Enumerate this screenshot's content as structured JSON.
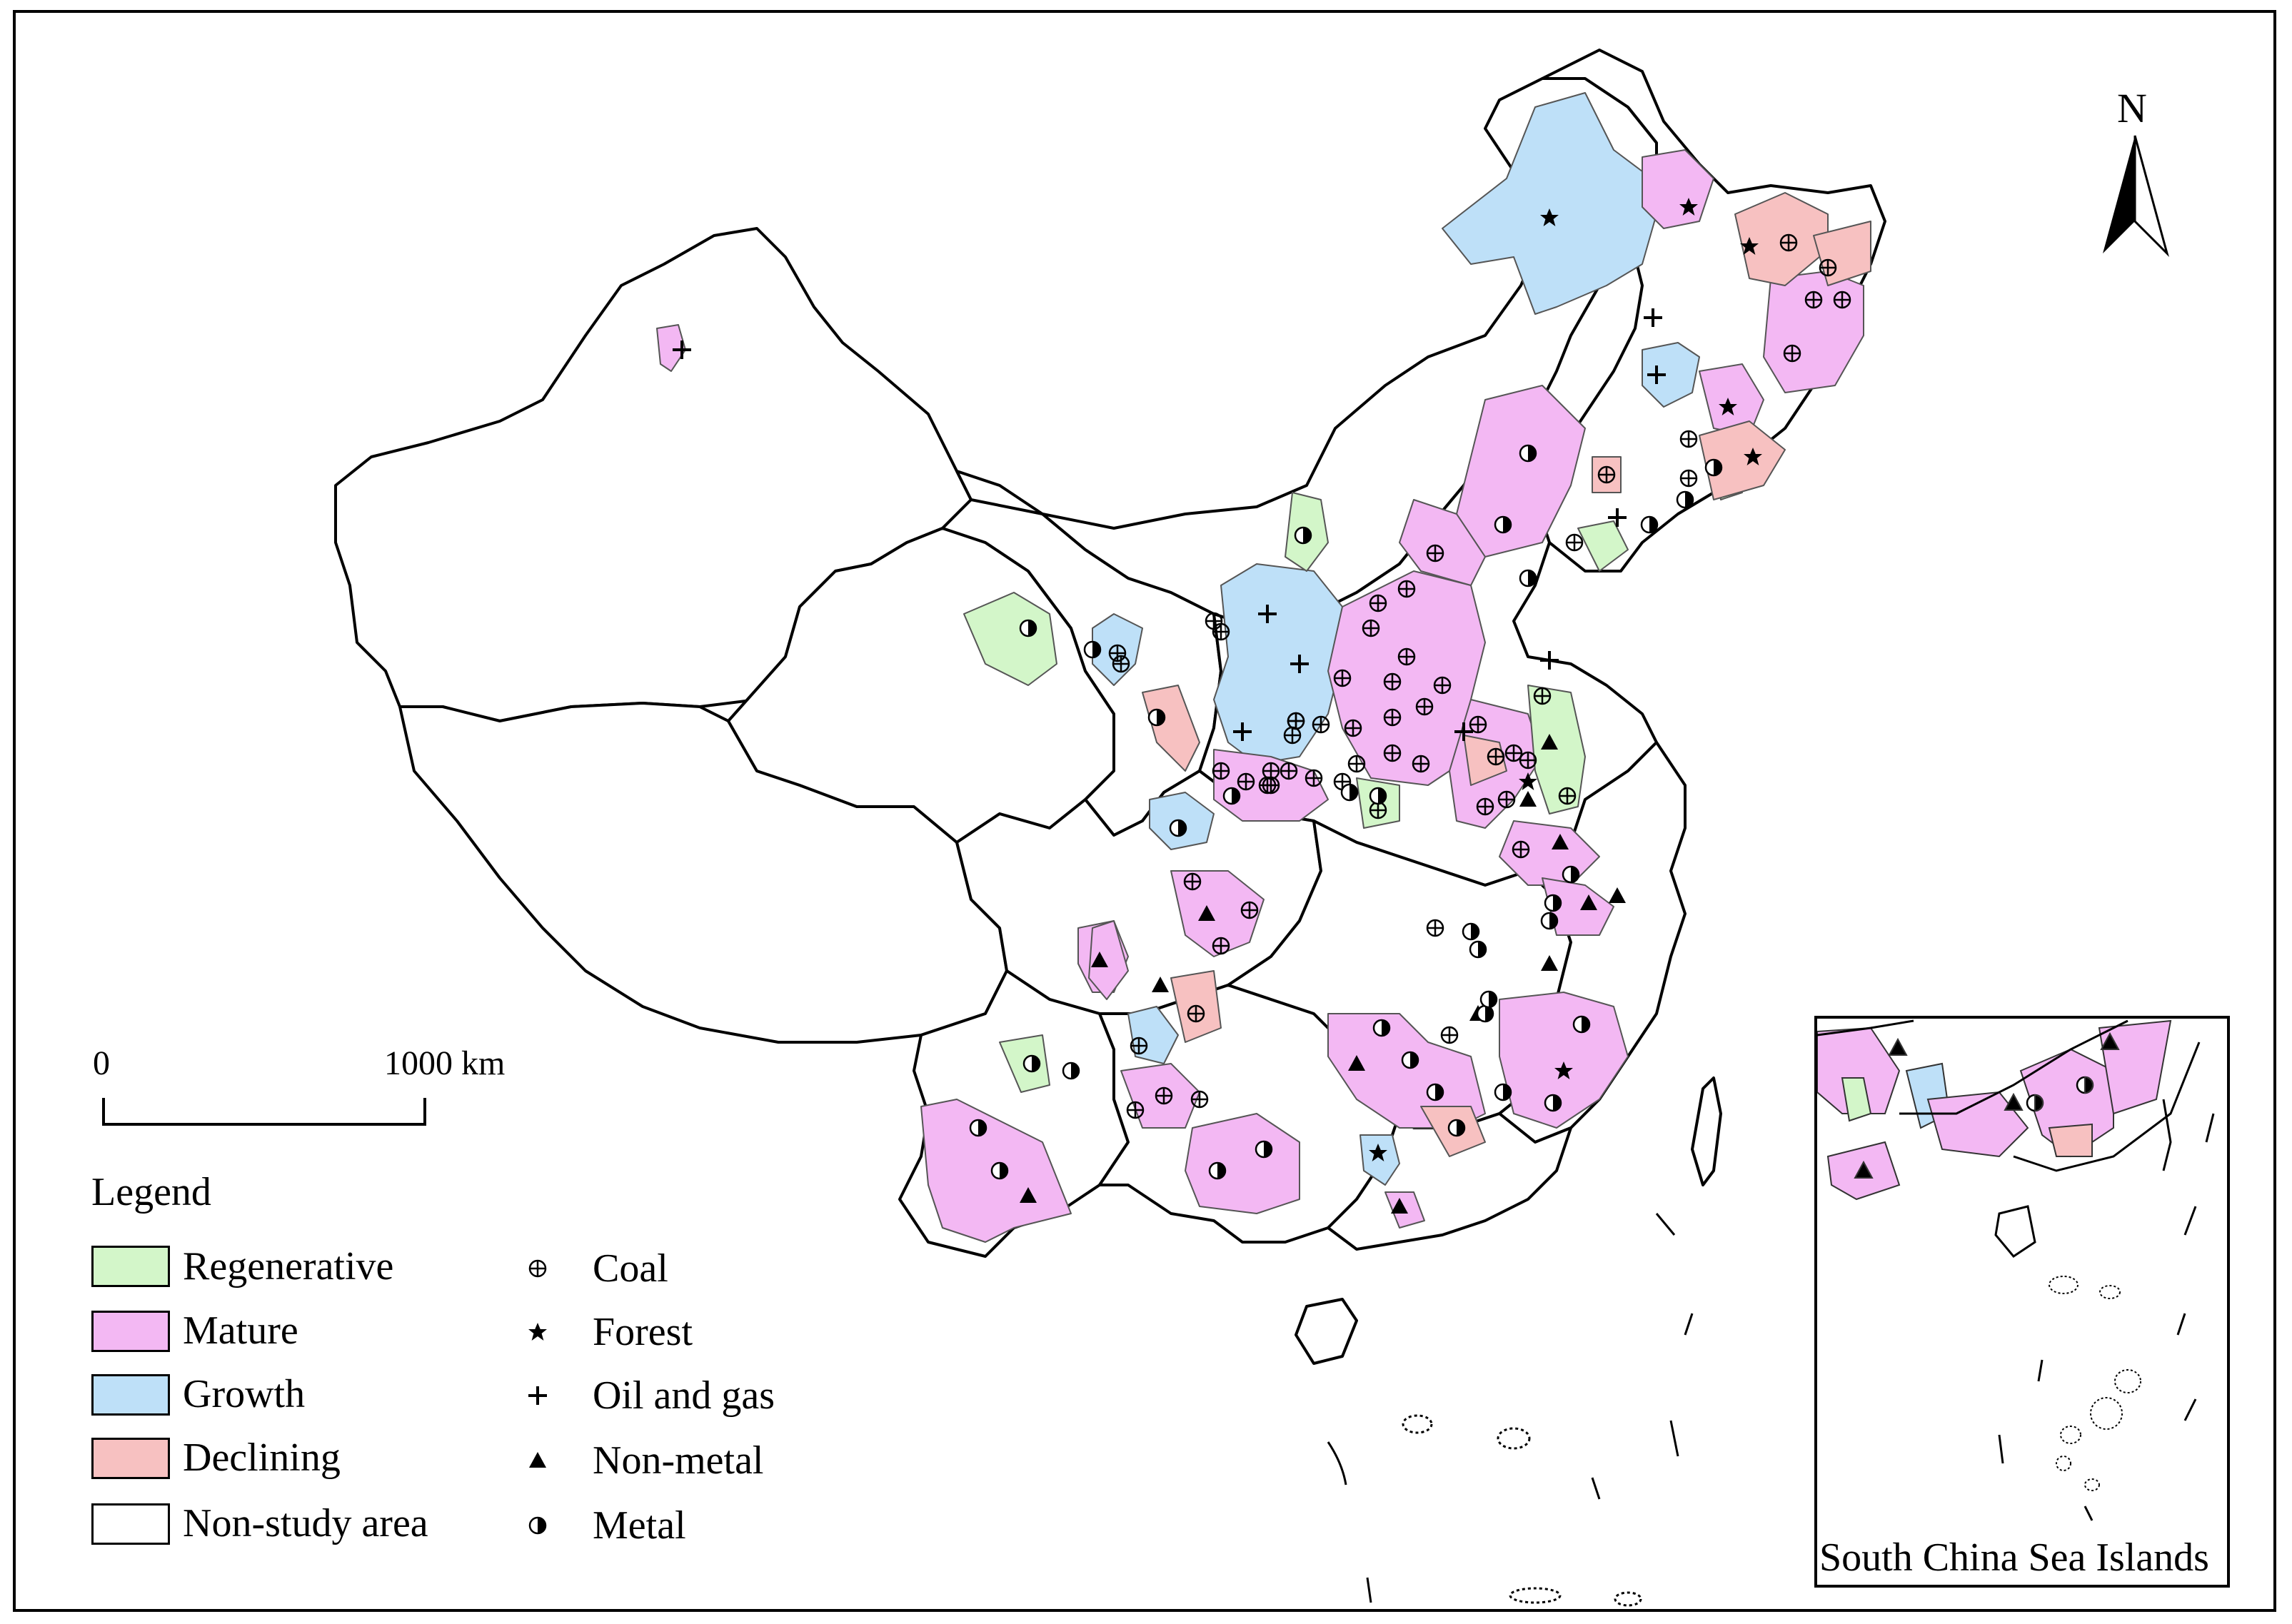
{
  "north_label": "N",
  "scale_bar": {
    "zero": "0",
    "end": "1000 km"
  },
  "legend": {
    "title": "Legend",
    "areas": [
      {
        "label": "Regenerative",
        "color": "#d3f6c9"
      },
      {
        "label": "Mature",
        "color": "#f3b8f3"
      },
      {
        "label": "Growth",
        "color": "#bee0f8"
      },
      {
        "label": "Declining",
        "color": "#f7c1c1"
      },
      {
        "label": "Non-study area",
        "color": "#ffffff"
      }
    ],
    "symbols": [
      {
        "label": "Coal",
        "icon": "circle-plus-icon"
      },
      {
        "label": "Forest",
        "icon": "star-icon"
      },
      {
        "label": "Oil and gas",
        "icon": "plus-icon"
      },
      {
        "label": "Non-metal",
        "icon": "triangle-icon"
      },
      {
        "label": "Metal",
        "icon": "half-circle-icon"
      }
    ]
  },
  "inset_title": "South China Sea Islands"
}
